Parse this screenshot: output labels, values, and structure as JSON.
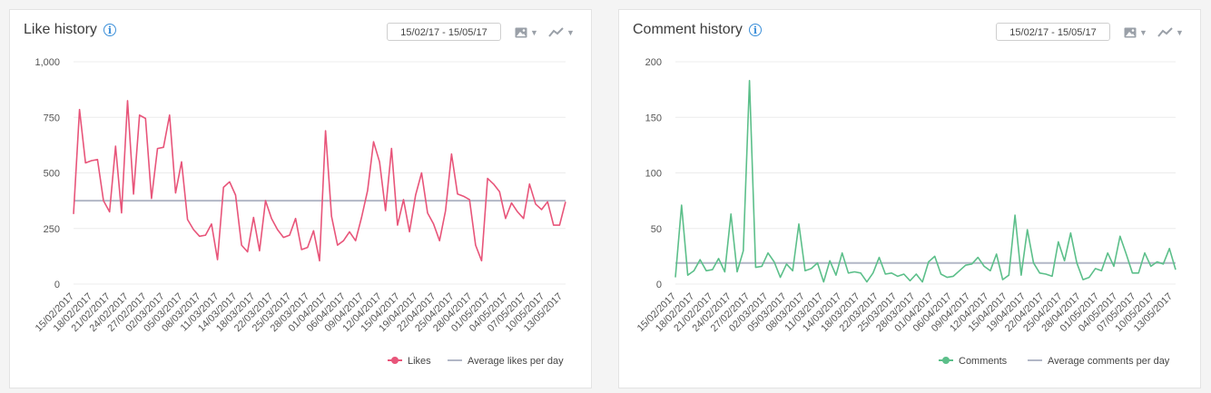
{
  "charts": [
    {
      "id": "likes",
      "title": "Like history",
      "date_range": "15/02/17 - 15/05/17",
      "tools": {
        "image_icon": "image-icon",
        "chart_type_icon": "line-chart-icon"
      }
    },
    {
      "id": "comments",
      "title": "Comment history",
      "date_range": "15/02/17 - 15/05/17",
      "tools": {
        "image_icon": "image-icon",
        "chart_type_icon": "line-chart-icon"
      }
    }
  ],
  "colors": {
    "likes": "#e8557a",
    "comments": "#5cbf8a",
    "average": "#b2b7c6",
    "info": "#3b8fd9"
  },
  "chart_data": [
    {
      "type": "line",
      "title": "Like history",
      "legend_position": "bottom-right",
      "grid": true,
      "ylim": [
        0,
        1000
      ],
      "yticks": [
        "1,000",
        "750",
        "500",
        "250",
        "0"
      ],
      "ytick_values": [
        1000,
        750,
        500,
        250,
        0
      ],
      "xtick_labels": [
        "15/02/2017",
        "18/02/2017",
        "21/02/2017",
        "24/02/2017",
        "27/02/2017",
        "02/03/2017",
        "05/03/2017",
        "08/03/2017",
        "11/03/2017",
        "14/03/2017",
        "18/03/2017",
        "22/03/2017",
        "25/03/2017",
        "28/03/2017",
        "01/04/2017",
        "06/04/2017",
        "09/04/2017",
        "12/04/2017",
        "15/04/2017",
        "19/04/2017",
        "22/04/2017",
        "25/04/2017",
        "28/04/2017",
        "01/05/2017",
        "04/05/2017",
        "07/05/2017",
        "10/05/2017",
        "13/05/2017"
      ],
      "series": [
        {
          "name": "Likes",
          "values": [
            315,
            785,
            545,
            555,
            560,
            375,
            325,
            620,
            320,
            825,
            405,
            760,
            745,
            385,
            610,
            615,
            760,
            410,
            550,
            290,
            245,
            215,
            220,
            270,
            110,
            435,
            460,
            400,
            175,
            145,
            300,
            150,
            375,
            295,
            245,
            210,
            220,
            295,
            155,
            165,
            240,
            105,
            690,
            305,
            175,
            195,
            235,
            195,
            300,
            420,
            640,
            550,
            330,
            610,
            265,
            380,
            235,
            400,
            500,
            320,
            270,
            195,
            330,
            585,
            405,
            395,
            380,
            175,
            105,
            475,
            450,
            415,
            295,
            365,
            325,
            295,
            450,
            360,
            335,
            370,
            265,
            265,
            370
          ]
        },
        {
          "name": "Average likes per day",
          "value": 375
        }
      ]
    },
    {
      "type": "line",
      "title": "Comment history",
      "legend_position": "bottom-right",
      "grid": true,
      "ylim": [
        0,
        200
      ],
      "yticks": [
        "200",
        "150",
        "100",
        "50",
        "0"
      ],
      "ytick_values": [
        200,
        150,
        100,
        50,
        0
      ],
      "xtick_labels": [
        "15/02/2017",
        "18/02/2017",
        "21/02/2017",
        "24/02/2017",
        "27/02/2017",
        "02/03/2017",
        "05/03/2017",
        "08/03/2017",
        "11/03/2017",
        "14/03/2017",
        "18/03/2017",
        "22/03/2017",
        "25/03/2017",
        "28/03/2017",
        "01/04/2017",
        "06/04/2017",
        "09/04/2017",
        "12/04/2017",
        "15/04/2017",
        "19/04/2017",
        "22/04/2017",
        "25/04/2017",
        "28/04/2017",
        "01/05/2017",
        "04/05/2017",
        "07/05/2017",
        "10/05/2017",
        "13/05/2017"
      ],
      "series": [
        {
          "name": "Comments",
          "values": [
            6,
            71,
            8,
            12,
            22,
            12,
            13,
            23,
            11,
            63,
            11,
            30,
            183,
            15,
            16,
            28,
            20,
            6,
            18,
            12,
            54,
            12,
            14,
            19,
            2,
            21,
            8,
            28,
            10,
            11,
            10,
            2,
            10,
            24,
            9,
            10,
            7,
            9,
            3,
            9,
            2,
            20,
            25,
            9,
            6,
            7,
            12,
            17,
            18,
            24,
            16,
            12,
            27,
            4,
            8,
            62,
            8,
            49,
            19,
            10,
            9,
            7,
            38,
            21,
            46,
            19,
            4,
            6,
            14,
            12,
            28,
            16,
            43,
            27,
            10,
            10,
            28,
            16,
            20,
            18,
            32,
            13
          ]
        },
        {
          "name": "Average comments per day",
          "value": 19
        }
      ]
    }
  ]
}
